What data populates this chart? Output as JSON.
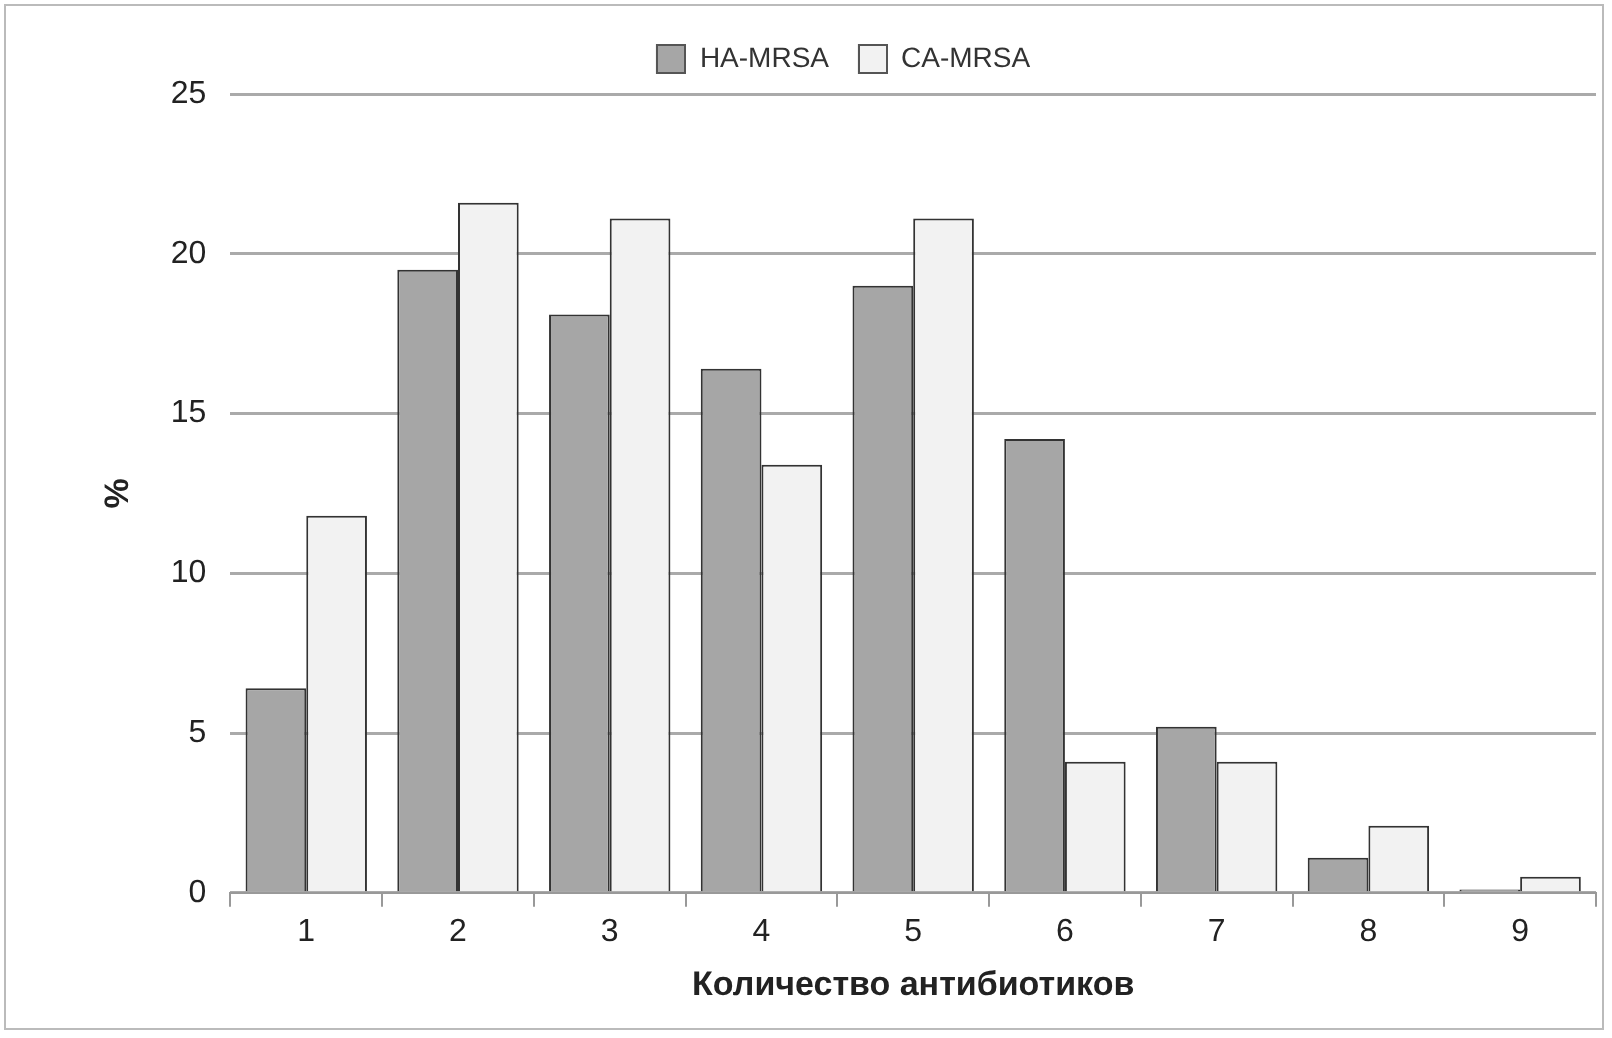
{
  "chart_data": {
    "type": "bar",
    "xlabel": "Количество антибиотиков",
    "ylabel": "%",
    "categories": [
      "1",
      "2",
      "3",
      "4",
      "5",
      "6",
      "7",
      "8",
      "9"
    ],
    "series": [
      {
        "name": "HA-MRSA",
        "color": "#a6a6a6",
        "values": [
          6.4,
          19.5,
          18.1,
          16.4,
          19.0,
          14.2,
          5.2,
          1.1,
          0.1
        ]
      },
      {
        "name": "CA-MRSA",
        "color": "#f2f2f2",
        "values": [
          11.8,
          21.6,
          21.1,
          13.4,
          21.1,
          4.1,
          4.1,
          2.1,
          0.5
        ]
      }
    ],
    "ylim": [
      0,
      25
    ],
    "yticks": [
      0,
      5,
      10,
      15,
      20,
      25
    ],
    "grid": "y",
    "legend": "top"
  }
}
